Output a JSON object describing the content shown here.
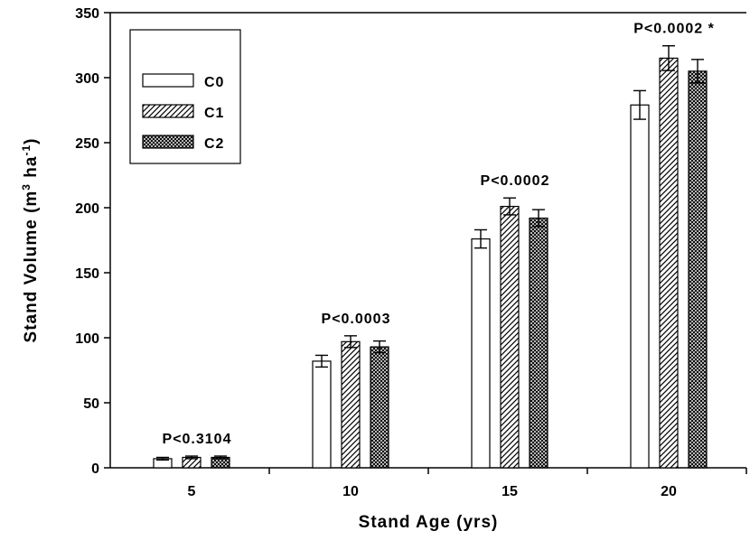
{
  "chart_data": {
    "type": "bar",
    "xlabel": "Stand Age (yrs)",
    "ylabel_parts": {
      "prefix": "Stand Volume (m",
      "sup1": "3",
      "middle": " ha",
      "sup2": "-1",
      "suffix": ")"
    },
    "ylim": [
      0,
      350
    ],
    "yticks": [
      0,
      50,
      100,
      150,
      200,
      250,
      300,
      350
    ],
    "categories": [
      "5",
      "10",
      "15",
      "20"
    ],
    "series": [
      {
        "name": "C0",
        "pattern": "open",
        "values": [
          7,
          82,
          176,
          279
        ],
        "errors": [
          1,
          4.5,
          7,
          11
        ]
      },
      {
        "name": "C1",
        "pattern": "hatch",
        "values": [
          8,
          97,
          201,
          315
        ],
        "errors": [
          1,
          4.5,
          6.5,
          9.5
        ]
      },
      {
        "name": "C2",
        "pattern": "cross",
        "values": [
          8,
          93,
          192,
          305
        ],
        "errors": [
          1,
          4.5,
          6.5,
          9
        ]
      }
    ],
    "annotations": [
      {
        "category": "5",
        "text": "P<0.3104"
      },
      {
        "category": "10",
        "text": "P<0.0003"
      },
      {
        "category": "15",
        "text": "P<0.0002"
      },
      {
        "category": "20",
        "text": "P<0.0002 *"
      }
    ],
    "legend": {
      "position": "top-left",
      "entries": [
        "C0",
        "C1",
        "C2"
      ]
    },
    "grid": false,
    "colors": {
      "bar_fill": "#ffffff",
      "stroke": "#000000"
    }
  }
}
